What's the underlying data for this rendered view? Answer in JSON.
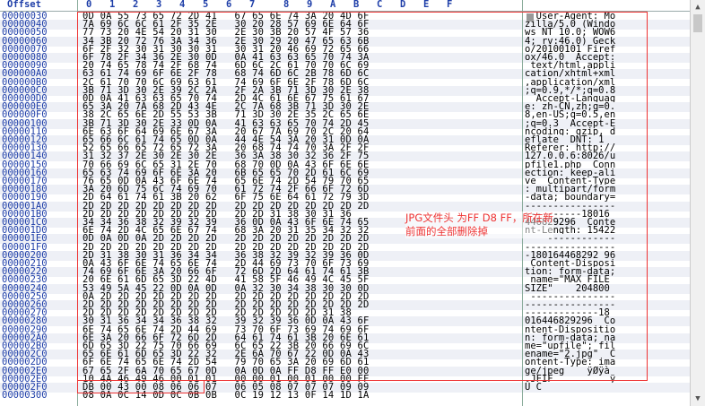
{
  "header": {
    "offset_label": "Offset",
    "columns": [
      "0",
      "1",
      "2",
      "3",
      "4",
      "5",
      "6",
      "7",
      "8",
      "9",
      "A",
      "B",
      "C",
      "D",
      "E",
      "F"
    ]
  },
  "rows": [
    {
      "off": "00000030",
      "hex": "0D 0A 55 73 65 72 2D 41   67 65 6E 74 3A 20 4D 6F",
      "asc": "  User-Agent: Mo"
    },
    {
      "off": "00000040",
      "hex": "7A 69 6C 6C 61 2F 35 2E   30 20 28 57 69 6E 64 6F",
      "asc": "zilla/5.0 (Windo"
    },
    {
      "off": "00000050",
      "hex": "77 73 20 4E 54 20 31 30   2E 30 3B 20 57 4F 57 36",
      "asc": "ws NT 10.0; WOW6"
    },
    {
      "off": "00000060",
      "hex": "34 3B 20 72 76 3A 34 36   2E 30 29 20 47 65 63 6B",
      "asc": "4; rv:46.0) Geck"
    },
    {
      "off": "00000070",
      "hex": "6F 2F 32 30 31 30 30 31   30 31 20 46 69 72 65 66",
      "asc": "o/20100101 Firef"
    },
    {
      "off": "00000080",
      "hex": "6F 78 2F 34 36 2E 30 0D   0A 41 63 63 65 70 74 3A",
      "asc": "ox/46.0  Accept:"
    },
    {
      "off": "00000090",
      "hex": "20 74 65 78 74 2F 68 74   6D 6C 2C 61 70 70 6C 69",
      "asc": " text/html,appli"
    },
    {
      "off": "000000A0",
      "hex": "63 61 74 69 6F 6E 2F 78   68 74 6D 6C 2B 78 6D 6C",
      "asc": "cation/xhtml+xml"
    },
    {
      "off": "000000B0",
      "hex": "2C 61 70 70 6C 69 63 61   74 69 6F 6E 2F 78 6D 6C",
      "asc": ",application/xml"
    },
    {
      "off": "000000C0",
      "hex": "3B 71 3D 30 2E 39 2C 2A   2F 2A 3B 71 3D 30 2E 38",
      "asc": ";q=0.9,*/*;q=0.8"
    },
    {
      "off": "000000D0",
      "hex": "0D 0A 41 63 63 65 70 74   2D 4C 61 6E 67 75 61 67",
      "asc": "  Accept-Languag"
    },
    {
      "off": "000000E0",
      "hex": "65 3A 20 7A 68 2D 43 4E   2C 7A 68 3B 71 3D 30 2E",
      "asc": "e: zh-CN,zh;q=0."
    },
    {
      "off": "000000F0",
      "hex": "38 2C 65 6E 2D 55 53 3B   71 3D 30 2E 35 2C 65 6E",
      "asc": "8,en-US;q=0.5,en"
    },
    {
      "off": "00000100",
      "hex": "3B 71 3D 30 2E 33 0D 0A   41 63 63 65 70 74 2D 45",
      "asc": ";q=0.3  Accept-E"
    },
    {
      "off": "00000110",
      "hex": "6E 63 6F 64 69 6E 67 3A   20 67 7A 69 70 2C 20 64",
      "asc": "ncoding: gzip, d"
    },
    {
      "off": "00000120",
      "hex": "65 66 6C 61 74 65 0D 0A   44 4E 54 3A 20 31 0D 0A",
      "asc": "eflate  DNT: 1  "
    },
    {
      "off": "00000130",
      "hex": "52 65 66 65 72 65 72 3A   20 68 74 74 70 3A 2F 2F",
      "asc": "Referer: http://"
    },
    {
      "off": "00000140",
      "hex": "31 32 37 2E 30 2E 30 2E   36 3A 38 30 32 36 2F 75",
      "asc": "127.0.0.6:8026/u"
    },
    {
      "off": "00000150",
      "hex": "70 66 69 6C 65 31 2E 70   68 70 0D 0A 43 6F 6E 6E",
      "asc": "pfile1.php  Conn"
    },
    {
      "off": "00000160",
      "hex": "65 63 74 69 6F 6E 3A 20   6B 65 65 70 2D 61 6C 69",
      "asc": "ection: keep-ali"
    },
    {
      "off": "00000170",
      "hex": "76 65 0D 0A 43 6F 6E 74   65 6E 74 2D 54 79 70 65",
      "asc": "ve  Content-Type"
    },
    {
      "off": "00000180",
      "hex": "3A 20 6D 75 6C 74 69 70   61 72 74 2F 66 6F 72 6D",
      "asc": ": multipart/form"
    },
    {
      "off": "00000190",
      "hex": "2D 64 61 74 61 3B 20 62   6F 75 6E 64 61 72 79 3D",
      "asc": "-data; boundary="
    },
    {
      "off": "000001A0",
      "hex": "2D 2D 2D 2D 2D 2D 2D 2D   2D 2D 2D 2D 2D 2D 2D 2D",
      "asc": "----------------"
    },
    {
      "off": "000001B0",
      "hex": "2D 2D 2D 2D 2D 2D 2D 2D   2D 2D 31 38 30 31 36",
      "asc": "----------18016"
    },
    {
      "off": "000001C0",
      "hex": "34 34 36 38 32 39 32 39   36 0D 0A 43 6F 6E 74 65",
      "asc": "446829296  Conte"
    },
    {
      "off": "000001D0",
      "hex": "6E 74 2D 4C 65 6E 67 74   68 3A 20 31 35 34 32 32",
      "asc": "nt-Length: 15422"
    },
    {
      "off": "000001E0",
      "hex": "0D 0A 0D 0A 2D 2D 2D 2D   2D 2D 2D 2D 2D 2D 2D 2D",
      "asc": "    ------------"
    },
    {
      "off": "000001F0",
      "hex": "2D 2D 2D 2D 2D 2D 2D 2D   2D 2D 2D 2D 2D 2D 2D 2D",
      "asc": "----------------"
    },
    {
      "off": "00000200",
      "hex": "2D 31 38 30 31 36 34 34   36 38 32 39 32 39 36 0D",
      "asc": "-180164468292 96 "
    },
    {
      "off": "00000210",
      "hex": "0A 43 6F 6E 74 65 6E 74   2D 44 69 73 70 6F 73 69",
      "asc": " Content-Disposi"
    },
    {
      "off": "00000220",
      "hex": "74 69 6F 6E 3A 20 66 6F   72 6D 2D 64 61 74 61 3B",
      "asc": "tion: form-data;"
    },
    {
      "off": "00000230",
      "hex": "20 6E 61 6D 65 3D 22 4D   41 58 5F 46 49 4C 45 5F",
      "asc": " name=\"MAX_FILE_"
    },
    {
      "off": "00000240",
      "hex": "53 49 5A 45 22 0D 0A 0D   0A 32 30 34 38 30 30 0D",
      "asc": "SIZE\"    204800 "
    },
    {
      "off": "00000250",
      "hex": "0A 2D 2D 2D 2D 2D 2D 2D   2D 2D 2D 2D 2D 2D 2D 2D",
      "asc": " ---------------"
    },
    {
      "off": "00000260",
      "hex": "2D 2D 2D 2D 2D 2D 2D 2D   2D 2D 2D 2D 2D 2D 2D 2D",
      "asc": "----------------"
    },
    {
      "off": "00000270",
      "hex": "2D 2D 2D 2D 2D 2D 2D 2D   2D 2D 2D 2D 2D 31 38",
      "asc": "-------------18"
    },
    {
      "off": "00000280",
      "hex": "30 31 36 34 34 36 38 32   39 32 39 36 0D 0A 43 6F",
      "asc": "016446829296  Co"
    },
    {
      "off": "00000290",
      "hex": "6E 74 65 6E 74 2D 44 69   73 70 6F 73 69 74 69 6F",
      "asc": "ntent-Dispositio"
    },
    {
      "off": "000002A0",
      "hex": "6E 3A 20 66 6F 72 6D 2D   64 61 74 61 3B 20 6E 61",
      "asc": "n: form-data; na"
    },
    {
      "off": "000002B0",
      "hex": "6D 65 3D 22 75 70 66 69   6C 65 22 3B 20 66 69 6C",
      "asc": "me=\"upfile\"; fil"
    },
    {
      "off": "000002C0",
      "hex": "65 6E 61 6D 65 3D 22 32   2E 6A 70 67 22 0D 0A 43",
      "asc": "ename=\"2.jpg\"  C"
    },
    {
      "off": "000002D0",
      "hex": "6F 6E 74 65 6E 74 2D 54   79 70 65 3A 20 69 6D 61",
      "asc": "ontent-Type: ima"
    },
    {
      "off": "000002E0",
      "hex": "67 65 2F 6A 70 65 67 0D   0A 0D 0A FF D8 FF E0 00",
      "asc": "ge/jpeg    ÿØÿà "
    },
    {
      "off": "000002E0",
      "hex": "10 4A 46 49 46 00 01 01   00 00 01 00 01 00 00 FF",
      "asc": " JFIF          ÿ"
    },
    {
      "off": "000002F0",
      "hex": "DB 00 43 00 08 06 06 07   06 05 08 07 07 07 09 09",
      "asc": "Û C"
    },
    {
      "off": "00000300",
      "hex": "08 0A 0C 14 0D 0C 0B 0B   0C 19 12 13 0F 14 1D 1A",
      "asc": ""
    }
  ],
  "annotation": {
    "line1": "JPG文件头 为FF D8 FF，所在新",
    "line2": "前面的全部删除掉"
  },
  "scrollbar": {
    "up": "▲",
    "down": "▼"
  }
}
